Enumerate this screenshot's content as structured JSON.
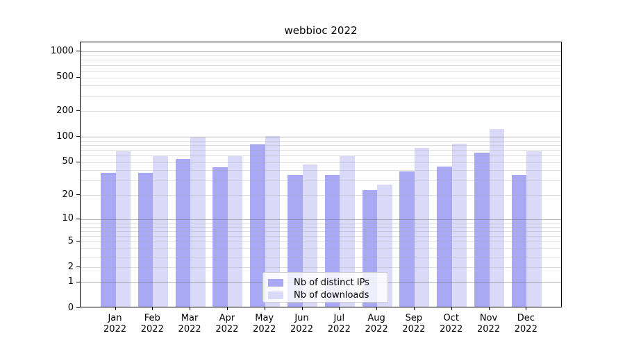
{
  "chart_data": {
    "type": "bar",
    "title": "webbioc 2022",
    "categories": [
      {
        "month": "Jan",
        "year": "2022"
      },
      {
        "month": "Feb",
        "year": "2022"
      },
      {
        "month": "Mar",
        "year": "2022"
      },
      {
        "month": "Apr",
        "year": "2022"
      },
      {
        "month": "May",
        "year": "2022"
      },
      {
        "month": "Jun",
        "year": "2022"
      },
      {
        "month": "Jul",
        "year": "2022"
      },
      {
        "month": "Aug",
        "year": "2022"
      },
      {
        "month": "Sep",
        "year": "2022"
      },
      {
        "month": "Oct",
        "year": "2022"
      },
      {
        "month": "Nov",
        "year": "2022"
      },
      {
        "month": "Dec",
        "year": "2022"
      }
    ],
    "series": [
      {
        "name": "Nb of distinct IPs",
        "color": "#a8a8f4",
        "values": [
          36,
          36,
          53,
          42,
          78,
          34,
          34,
          22,
          37,
          43,
          63,
          34
        ]
      },
      {
        "name": "Nb of downloads",
        "color": "#dadaf8",
        "values": [
          65,
          57,
          94,
          57,
          99,
          45,
          57,
          26,
          71,
          80,
          120,
          65
        ]
      }
    ],
    "y_axis": {
      "scale": "log10(value+1), linear-to-zero",
      "tick_values": [
        0,
        1,
        2,
        5,
        10,
        20,
        50,
        100,
        200,
        500,
        1000
      ],
      "tick_labels": [
        "0",
        "1",
        "2",
        "5",
        "10",
        "20",
        "50",
        "100",
        "200",
        "500",
        "1000"
      ],
      "display_max": 1286,
      "major_gridlines": [
        1,
        10,
        100,
        1000
      ],
      "minor_gridline_multiples": [
        2,
        3,
        4,
        5,
        6,
        7,
        8,
        9
      ],
      "minor_gridline_decades": [
        1,
        10,
        100
      ]
    },
    "legend": {
      "position": "bottom-center-inside"
    },
    "grid": true
  }
}
